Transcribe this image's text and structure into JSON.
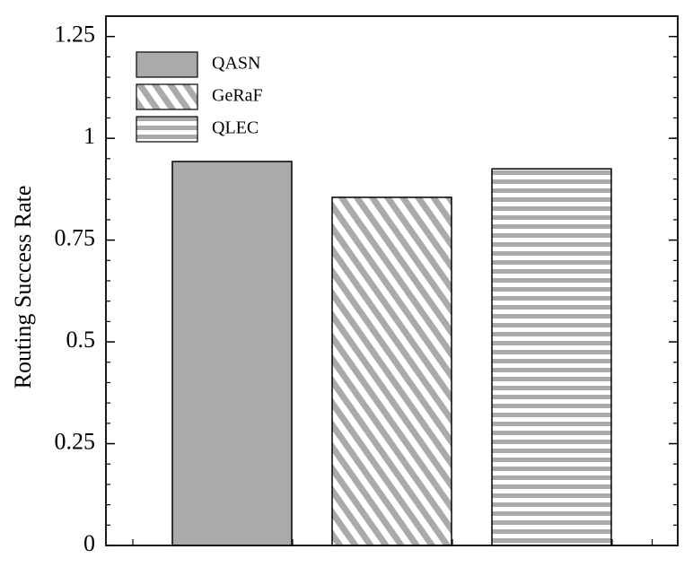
{
  "chart_data": {
    "type": "bar",
    "y_label": "Routing Success Rate",
    "ylim": [
      0,
      1.3
    ],
    "yticks": [
      0,
      0.25,
      0.5,
      0.75,
      1,
      1.25
    ],
    "series": [
      {
        "name": "QASN",
        "color": "#aaaaaa",
        "pattern": "solid",
        "values": [
          0.943
        ]
      },
      {
        "name": "GeRaF",
        "color": "#aaaaaa",
        "pattern": "diagonal",
        "values": [
          0.855
        ]
      },
      {
        "name": "QLEC",
        "color": "#aaaaaa",
        "pattern": "horizontal",
        "values": [
          0.925
        ]
      }
    ]
  }
}
